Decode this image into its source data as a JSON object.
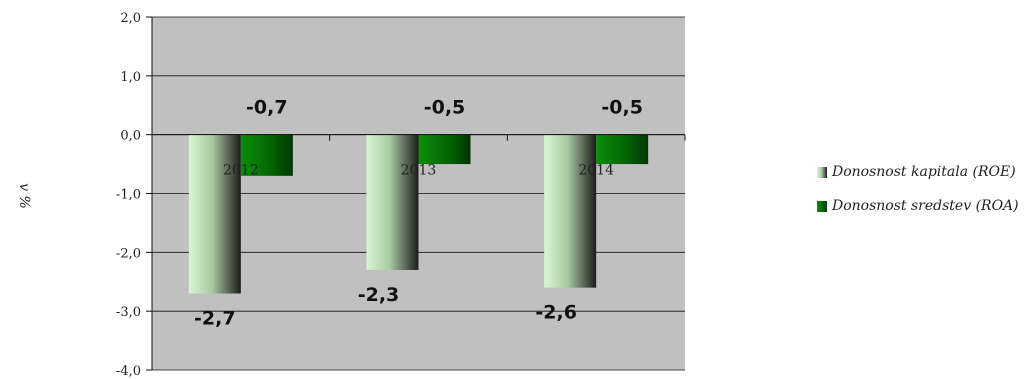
{
  "chart_data": {
    "type": "bar",
    "categories": [
      "2012",
      "2013",
      "2014"
    ],
    "series": [
      {
        "name": "Donosnost kapitala (ROE)",
        "values": [
          -2.7,
          -2.3,
          -2.6
        ],
        "color": "#d8f5d2"
      },
      {
        "name": "Donosnost sredstev (ROA)",
        "values": [
          -0.7,
          -0.5,
          -0.5
        ],
        "color": "#0b7a0b"
      }
    ],
    "data_labels": [
      [
        "-2,7",
        "-2,3",
        "-2,6"
      ],
      [
        "-0,7",
        "-0,5",
        "-0,5"
      ]
    ],
    "ylabel": "v %",
    "ylim": [
      -4.0,
      2.0
    ],
    "yticks": [
      2.0,
      1.0,
      0.0,
      -1.0,
      -2.0,
      -3.0,
      -4.0
    ],
    "ytick_labels": [
      "2,0",
      "1,0",
      "0,0",
      "-1,0",
      "-2,0",
      "-3,0",
      "-4,0"
    ],
    "grid": true,
    "plot_background": "#c0c0c0",
    "legend_position": "right"
  }
}
